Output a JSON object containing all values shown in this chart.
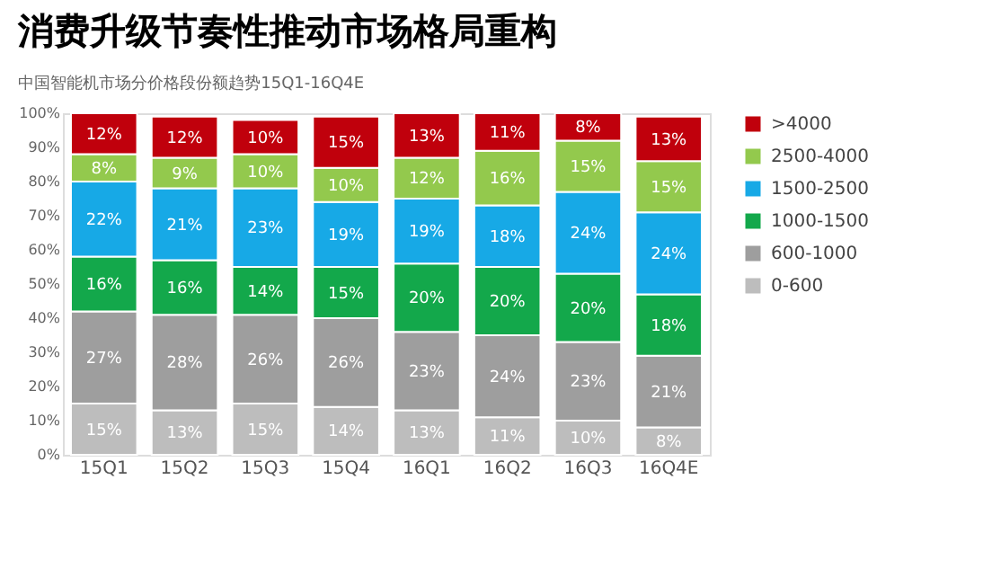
{
  "chart_data": {
    "type": "bar",
    "title": "消费升级节奏性推动市场格局重构",
    "subtitle": "中国智能机市场分价格段份额趋势15Q1-16Q4E",
    "categories": [
      "15Q1",
      "15Q2",
      "15Q3",
      "15Q4",
      "16Q1",
      "16Q2",
      "16Q3",
      "16Q4E"
    ],
    "stacked": true,
    "legend": "right",
    "grid": false,
    "ylim": [
      0,
      100
    ],
    "yticks": [
      {
        "value": 0,
        "label": "0%"
      },
      {
        "value": 10,
        "label": "10%"
      },
      {
        "value": 20,
        "label": "20%"
      },
      {
        "value": 30,
        "label": "30%"
      },
      {
        "value": 40,
        "label": "40%"
      },
      {
        "value": 50,
        "label": "50%"
      },
      {
        "value": 60,
        "label": "60%"
      },
      {
        "value": 70,
        "label": "70%"
      },
      {
        "value": 80,
        "label": "80%"
      },
      {
        "value": 90,
        "label": "90%"
      },
      {
        "value": 100,
        "label": "100%"
      }
    ],
    "series": [
      {
        "name": "0-600",
        "color": "#bdbdbd",
        "values": [
          15,
          13,
          15,
          14,
          13,
          11,
          10,
          8
        ],
        "value_labels": [
          "15%",
          "13%",
          "15%",
          "14%",
          "13%",
          "11%",
          "10%",
          "8%"
        ]
      },
      {
        "name": "600-1000",
        "color": "#9e9e9e",
        "values": [
          27,
          28,
          26,
          26,
          23,
          24,
          23,
          21
        ],
        "value_labels": [
          "27%",
          "28%",
          "26%",
          "26%",
          "23%",
          "24%",
          "23%",
          "21%"
        ]
      },
      {
        "name": "1000-1500",
        "color": "#13a84b",
        "values": [
          16,
          16,
          14,
          15,
          20,
          20,
          20,
          18
        ],
        "value_labels": [
          "16%",
          "16%",
          "14%",
          "15%",
          "20%",
          "20%",
          "20%",
          "18%"
        ]
      },
      {
        "name": "1500-2500",
        "color": "#17a9e6",
        "values": [
          22,
          21,
          23,
          19,
          19,
          18,
          24,
          24
        ],
        "value_labels": [
          "22%",
          "21%",
          "23%",
          "19%",
          "19%",
          "18%",
          "24%",
          "24%"
        ]
      },
      {
        "name": "2500-4000",
        "color": "#93c94d",
        "values": [
          8,
          9,
          10,
          10,
          12,
          16,
          15,
          15
        ],
        "value_labels": [
          "8%",
          "9%",
          "10%",
          "10%",
          "12%",
          "16%",
          "15%",
          "15%"
        ]
      },
      {
        "name": ">4000",
        "color": "#c0000c",
        "values": [
          12,
          12,
          10,
          15,
          13,
          11,
          8,
          13
        ],
        "value_labels": [
          "12%",
          "12%",
          "10%",
          "15%",
          "13%",
          "11%",
          "8%",
          "13%"
        ]
      }
    ]
  }
}
